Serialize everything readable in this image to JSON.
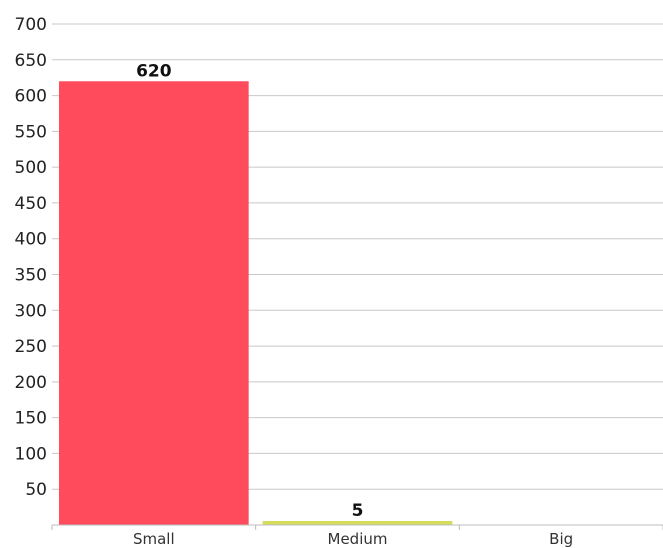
{
  "chart_data": {
    "type": "bar",
    "categories": [
      "Small",
      "Medium",
      "Big"
    ],
    "values": [
      620,
      5,
      null
    ],
    "data_labels": [
      "620",
      "5",
      ""
    ],
    "colors": [
      "#ff4b5c",
      "#d4dc5a",
      "#cccccc"
    ],
    "ylim": [
      0,
      700
    ],
    "yticks": [
      50,
      100,
      150,
      200,
      250,
      300,
      350,
      400,
      450,
      500,
      550,
      600,
      650,
      700
    ],
    "ytick_labels": [
      "50",
      "100",
      "150",
      "200",
      "250",
      "300",
      "350",
      "400",
      "450",
      "500",
      "550",
      "600",
      "650",
      "700"
    ],
    "grid": true,
    "legend": "none",
    "title": "",
    "xlabel": "",
    "ylabel": ""
  }
}
